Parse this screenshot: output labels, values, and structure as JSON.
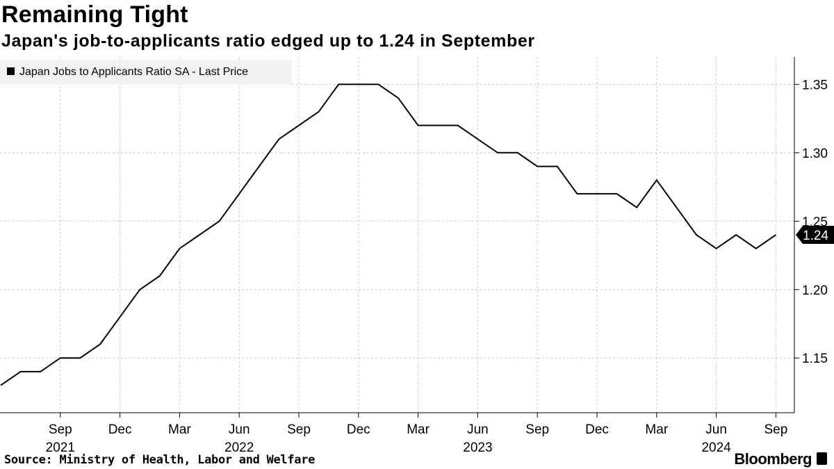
{
  "header": {
    "title": "Remaining Tight",
    "subtitle": "Japan's job-to-applicants ratio edged up to 1.24 in September"
  },
  "footer": {
    "source": "Source: Ministry of Health, Labor and Welfare",
    "brand": "Bloomberg"
  },
  "chart_data": {
    "type": "line",
    "title": "Remaining Tight",
    "subtitle": "Japan's job-to-applicants ratio edged up to 1.24 in September",
    "xlabel": "",
    "ylabel": "",
    "legend": {
      "label": "Japan Jobs to Applicants Ratio SA - Last Price",
      "placement": "top-left"
    },
    "grid": true,
    "ylim": [
      1.11,
      1.37
    ],
    "y_ticks": [
      "1.15",
      "1.20",
      "1.25",
      "1.30",
      "1.35"
    ],
    "y_tick_values": [
      1.15,
      1.2,
      1.25,
      1.3,
      1.35
    ],
    "x_ticks": [
      {
        "month": "Sep",
        "year": "2021",
        "index": 3
      },
      {
        "month": "Dec",
        "year": "",
        "index": 6
      },
      {
        "month": "Mar",
        "year": "",
        "index": 9
      },
      {
        "month": "Jun",
        "year": "2022",
        "index": 12
      },
      {
        "month": "Sep",
        "year": "",
        "index": 15
      },
      {
        "month": "Dec",
        "year": "",
        "index": 18
      },
      {
        "month": "Mar",
        "year": "",
        "index": 21
      },
      {
        "month": "Jun",
        "year": "2023",
        "index": 24
      },
      {
        "month": "Sep",
        "year": "",
        "index": 27
      },
      {
        "month": "Dec",
        "year": "",
        "index": 30
      },
      {
        "month": "Mar",
        "year": "",
        "index": 33
      },
      {
        "month": "Jun",
        "year": "2024",
        "index": 36
      },
      {
        "month": "Sep",
        "year": "",
        "index": 39
      }
    ],
    "series": [
      {
        "name": "Japan Jobs to Applicants Ratio SA - Last Price",
        "x": [
          "Jun 2021",
          "Jul 2021",
          "Aug 2021",
          "Sep 2021",
          "Oct 2021",
          "Nov 2021",
          "Dec 2021",
          "Jan 2022",
          "Feb 2022",
          "Mar 2022",
          "Apr 2022",
          "May 2022",
          "Jun 2022",
          "Jul 2022",
          "Aug 2022",
          "Sep 2022",
          "Oct 2022",
          "Nov 2022",
          "Dec 2022",
          "Jan 2023",
          "Feb 2023",
          "Mar 2023",
          "Apr 2023",
          "May 2023",
          "Jun 2023",
          "Jul 2023",
          "Aug 2023",
          "Sep 2023",
          "Oct 2023",
          "Nov 2023",
          "Dec 2023",
          "Jan 2024",
          "Feb 2024",
          "Mar 2024",
          "Apr 2024",
          "May 2024",
          "Jun 2024",
          "Jul 2024",
          "Aug 2024",
          "Sep 2024"
        ],
        "values": [
          1.13,
          1.14,
          1.14,
          1.15,
          1.15,
          1.16,
          1.18,
          1.2,
          1.21,
          1.23,
          1.24,
          1.25,
          1.27,
          1.29,
          1.31,
          1.32,
          1.33,
          1.35,
          1.35,
          1.35,
          1.34,
          1.32,
          1.32,
          1.32,
          1.31,
          1.3,
          1.3,
          1.29,
          1.29,
          1.27,
          1.27,
          1.27,
          1.26,
          1.28,
          1.26,
          1.24,
          1.23,
          1.24,
          1.23,
          1.24
        ]
      }
    ],
    "last_value_label": "1.24"
  }
}
